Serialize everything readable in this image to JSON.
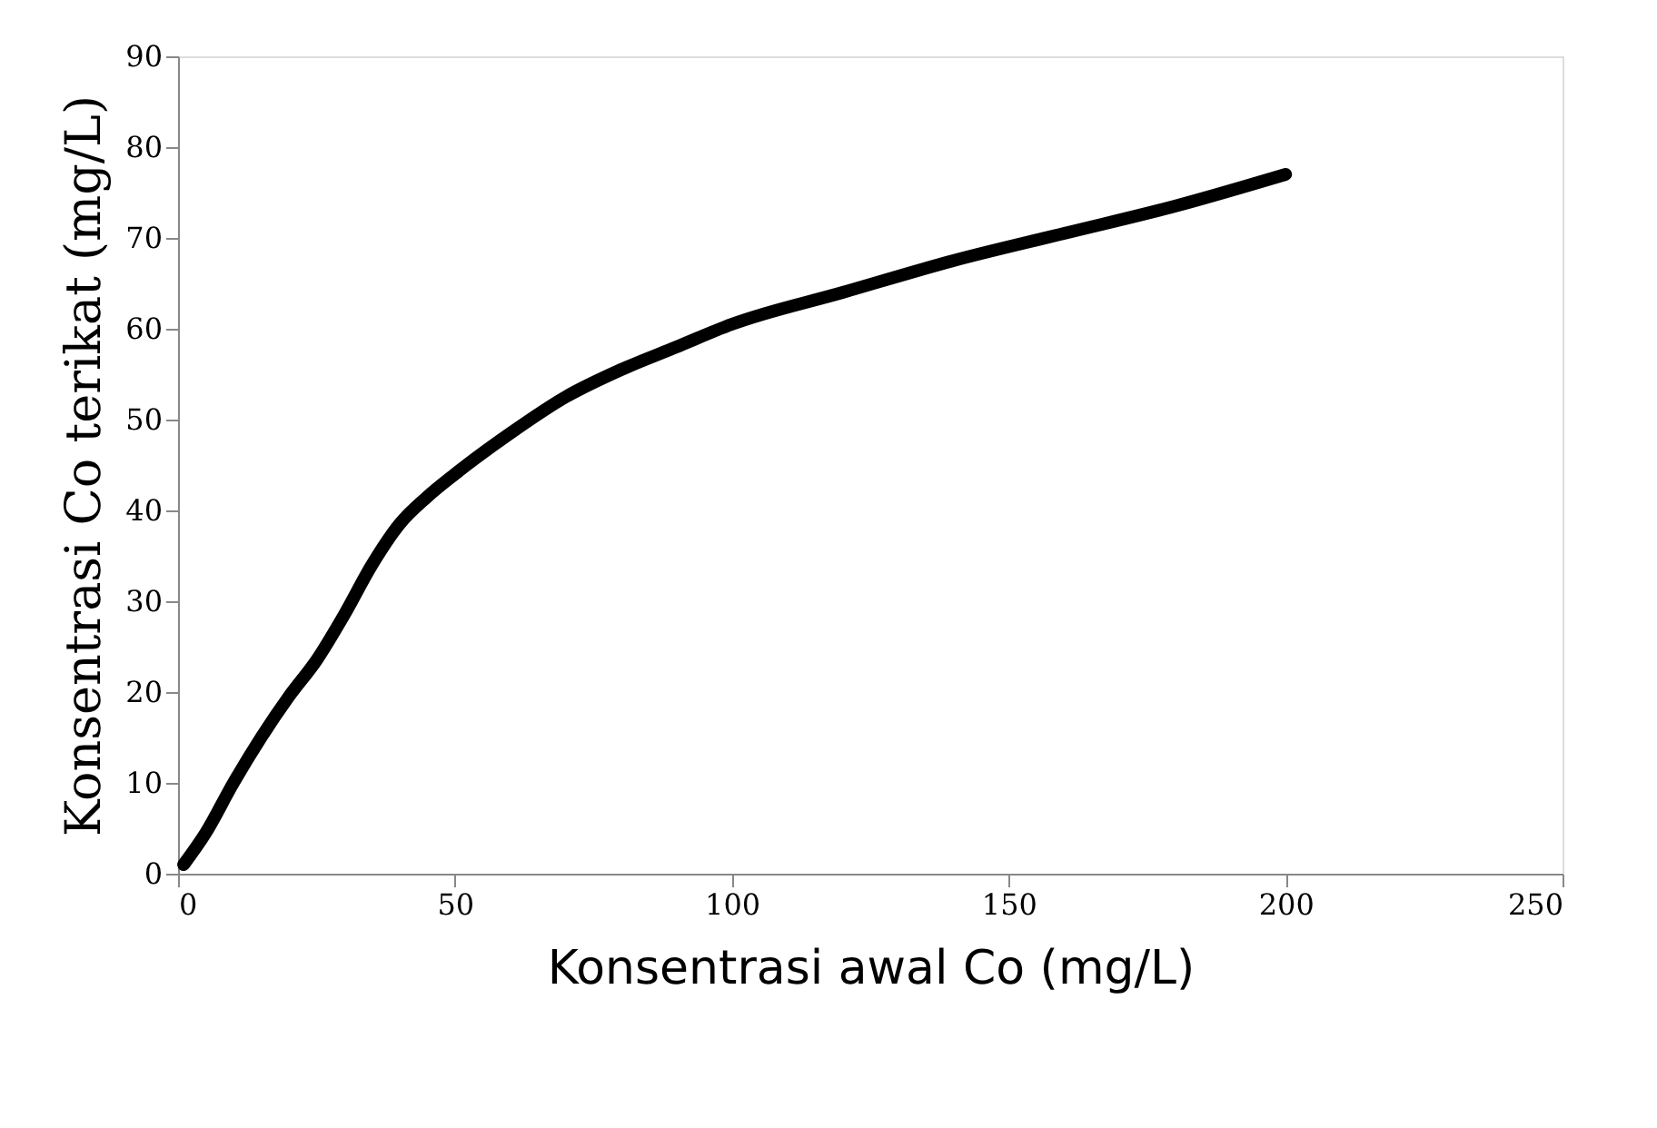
{
  "chart_data": {
    "type": "line",
    "xlabel": "Konsentrasi awal  Co (mg/L)",
    "ylabel": "Konsentrasi Co terikat (mg/L)",
    "x": [
      1,
      5,
      10,
      15,
      20,
      25,
      30,
      35,
      40,
      45,
      50,
      60,
      70,
      80,
      90,
      100,
      120,
      140,
      160,
      180,
      200
    ],
    "series": [
      {
        "color": "#000000",
        "values": [
          1,
          4.5,
          10,
          15,
          19.5,
          23.5,
          28.5,
          34,
          38.5,
          41.5,
          44,
          48.5,
          52.5,
          55.5,
          58,
          60.5,
          64,
          67.5,
          70.5,
          73.5,
          77
        ]
      }
    ],
    "xlim": [
      0,
      250
    ],
    "xticks": [
      0,
      50,
      100,
      150,
      200,
      250
    ],
    "ylim": [
      0,
      90
    ],
    "yticks": [
      0,
      10,
      20,
      30,
      40,
      50,
      60,
      70,
      80,
      90
    ],
    "grid": false,
    "line_style": "solid"
  }
}
